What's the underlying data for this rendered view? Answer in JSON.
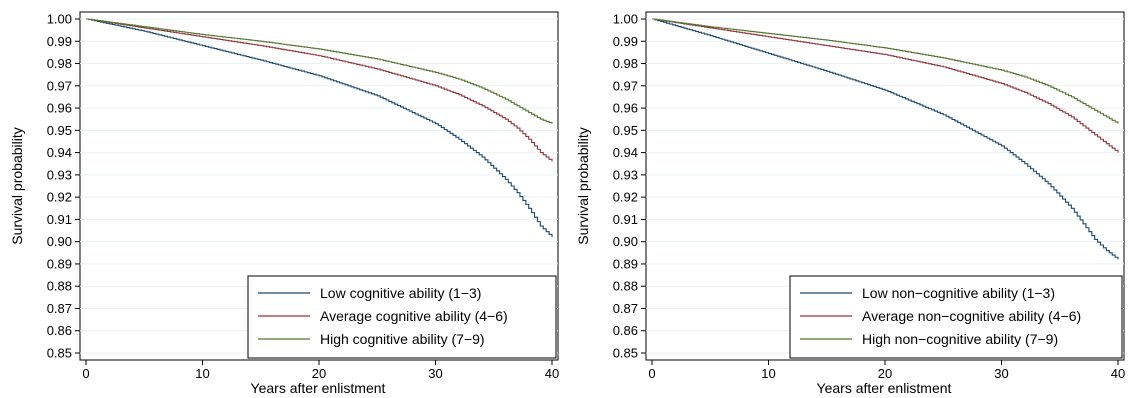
{
  "chart_data": [
    {
      "type": "line",
      "step": true,
      "title": "",
      "xlabel": "Years after enlistment",
      "ylabel": "Survival probability",
      "xlim": [
        0,
        40
      ],
      "ylim": [
        0.85,
        1.0
      ],
      "xticks": [
        0,
        10,
        20,
        30,
        40
      ],
      "yticks": [
        0.85,
        0.86,
        0.87,
        0.88,
        0.89,
        0.9,
        0.91,
        0.92,
        0.93,
        0.94,
        0.95,
        0.96,
        0.97,
        0.98,
        0.99,
        1.0
      ],
      "xtick_labels": [
        "0",
        "10",
        "20",
        "30",
        "40"
      ],
      "ytick_labels": [
        "0.85",
        "0.86",
        "0.87",
        "0.88",
        "0.89",
        "0.90",
        "0.91",
        "0.92",
        "0.93",
        "0.94",
        "0.95",
        "0.96",
        "0.97",
        "0.98",
        "0.99",
        "1.00"
      ],
      "grid": true,
      "legend_position": "bottom-right",
      "series": [
        {
          "name": "Low cognitive ability (1−3)",
          "color": "#1a476f",
          "x": [
            0,
            5,
            10,
            15,
            20,
            25,
            30,
            32,
            34,
            36,
            37,
            38,
            39,
            40
          ],
          "y": [
            1.0,
            0.9945,
            0.988,
            0.9815,
            0.9745,
            0.9655,
            0.953,
            0.946,
            0.938,
            0.928,
            0.922,
            0.915,
            0.907,
            0.902
          ]
        },
        {
          "name": "Average cognitive ability (4−6)",
          "color": "#90353b",
          "x": [
            0,
            5,
            10,
            15,
            20,
            25,
            30,
            32,
            34,
            36,
            37,
            38,
            39,
            40
          ],
          "y": [
            1.0,
            0.996,
            0.992,
            0.988,
            0.9835,
            0.9775,
            0.97,
            0.966,
            0.961,
            0.955,
            0.951,
            0.946,
            0.94,
            0.936
          ]
        },
        {
          "name": "High cognitive ability (7−9)",
          "color": "#55752f",
          "x": [
            0,
            5,
            10,
            15,
            20,
            25,
            30,
            32,
            34,
            36,
            37,
            38,
            39,
            40
          ],
          "y": [
            1.0,
            0.9965,
            0.993,
            0.99,
            0.9865,
            0.982,
            0.976,
            0.973,
            0.969,
            0.964,
            0.961,
            0.958,
            0.955,
            0.953
          ]
        }
      ]
    },
    {
      "type": "line",
      "step": true,
      "title": "",
      "xlabel": "Years after enlistment",
      "ylabel": "Survival probability",
      "xlim": [
        0,
        40
      ],
      "ylim": [
        0.85,
        1.0
      ],
      "xticks": [
        0,
        10,
        20,
        30,
        40
      ],
      "yticks": [
        0.85,
        0.86,
        0.87,
        0.88,
        0.89,
        0.9,
        0.91,
        0.92,
        0.93,
        0.94,
        0.95,
        0.96,
        0.97,
        0.98,
        0.99,
        1.0
      ],
      "xtick_labels": [
        "0",
        "10",
        "20",
        "30",
        "40"
      ],
      "ytick_labels": [
        "0.85",
        "0.86",
        "0.87",
        "0.88",
        "0.89",
        "0.90",
        "0.91",
        "0.92",
        "0.93",
        "0.94",
        "0.95",
        "0.96",
        "0.97",
        "0.98",
        "0.99",
        "1.00"
      ],
      "grid": true,
      "legend_position": "bottom-right",
      "series": [
        {
          "name": "Low non−cognitive ability (1−3)",
          "color": "#1a476f",
          "x": [
            0,
            5,
            10,
            15,
            20,
            25,
            30,
            32,
            34,
            36,
            37,
            38,
            39,
            40
          ],
          "y": [
            1.0,
            0.9925,
            0.9845,
            0.9765,
            0.968,
            0.957,
            0.943,
            0.935,
            0.926,
            0.915,
            0.908,
            0.901,
            0.896,
            0.892
          ]
        },
        {
          "name": "Average non−cognitive ability (4−6)",
          "color": "#90353b",
          "x": [
            0,
            5,
            10,
            15,
            20,
            25,
            30,
            32,
            34,
            36,
            37,
            38,
            39,
            40
          ],
          "y": [
            1.0,
            0.996,
            0.992,
            0.988,
            0.984,
            0.9785,
            0.971,
            0.967,
            0.962,
            0.956,
            0.952,
            0.948,
            0.944,
            0.94
          ]
        },
        {
          "name": "High non−cognitive ability (7−9)",
          "color": "#55752f",
          "x": [
            0,
            5,
            10,
            15,
            20,
            25,
            30,
            32,
            34,
            36,
            37,
            38,
            39,
            40
          ],
          "y": [
            1.0,
            0.9965,
            0.9935,
            0.9905,
            0.987,
            0.9825,
            0.977,
            0.974,
            0.97,
            0.965,
            0.962,
            0.959,
            0.956,
            0.953
          ]
        }
      ]
    }
  ]
}
